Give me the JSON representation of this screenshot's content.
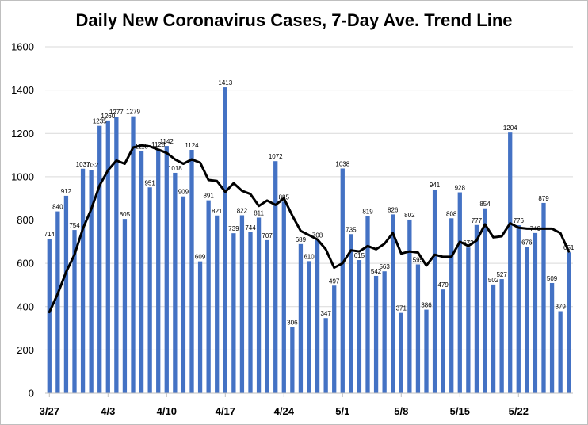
{
  "chart_data": {
    "type": "bar",
    "title": "Daily New Coronavirus Cases, 7-Day Ave. Trend Line",
    "xlabel": "",
    "ylabel": "",
    "ylim": [
      0,
      1600
    ],
    "yticks": [
      0,
      200,
      400,
      600,
      800,
      1000,
      1200,
      1400,
      1600
    ],
    "x_tick_labels": [
      {
        "label": "3/27",
        "index": 0
      },
      {
        "label": "4/3",
        "index": 7
      },
      {
        "label": "4/10",
        "index": 14
      },
      {
        "label": "4/17",
        "index": 21
      },
      {
        "label": "4/24",
        "index": 28
      },
      {
        "label": "5/1",
        "index": 35
      },
      {
        "label": "5/8",
        "index": 42
      },
      {
        "label": "5/15",
        "index": 49
      },
      {
        "label": "5/22",
        "index": 56
      }
    ],
    "grid": true,
    "bar_color": "#4472c4",
    "trend_color": "#000000",
    "series": [
      {
        "type": "bar",
        "values": [
          714,
          840,
          912,
          754,
          1037,
          1032,
          1235,
          1260,
          1277,
          805,
          1279,
          1118,
          951,
          1128,
          1142,
          1018,
          909,
          1124,
          609,
          891,
          821,
          1413,
          739,
          822,
          744,
          811,
          707,
          1072,
          885,
          306,
          689,
          610,
          708,
          347,
          497,
          1038,
          735,
          615,
          819,
          542,
          563,
          826,
          371,
          802,
          595,
          386,
          941,
          479,
          808,
          928,
          673,
          777,
          854,
          502,
          527,
          1204,
          776,
          676,
          740,
          879,
          509,
          379,
          651
        ],
        "labels": [
          "714",
          "840",
          "912",
          "754",
          "1037",
          "1032",
          "1235",
          "1260",
          "1277",
          "805",
          "1279",
          "1118",
          "951",
          "1128",
          "1142",
          "1018",
          "909",
          "1124",
          "609",
          "891",
          "821",
          "1413",
          "739",
          "822",
          "744",
          "811",
          "707",
          "1072",
          "885",
          "306",
          "689",
          "610",
          "708",
          "347",
          "497",
          "1038",
          "735",
          "615",
          "819",
          "542",
          "563",
          "826",
          "371",
          "802",
          "595",
          "386",
          "941",
          "479",
          "808",
          "928",
          "673",
          "777",
          "854",
          "502",
          "527",
          "1204",
          "776",
          "676",
          "740",
          "879",
          "509",
          "379",
          "651"
        ]
      },
      {
        "type": "line",
        "values": [
          375,
          460,
          560,
          640,
          760,
          850,
          960,
          1030,
          1075,
          1060,
          1135,
          1145,
          1140,
          1125,
          1110,
          1080,
          1060,
          1080,
          1065,
          985,
          980,
          930,
          970,
          935,
          920,
          865,
          890,
          870,
          900,
          820,
          750,
          730,
          710,
          665,
          580,
          600,
          660,
          655,
          680,
          665,
          690,
          740,
          645,
          655,
          650,
          590,
          640,
          630,
          630,
          700,
          680,
          705,
          780,
          720,
          725,
          785,
          765,
          760,
          760,
          760,
          760,
          740,
          655
        ]
      }
    ]
  }
}
